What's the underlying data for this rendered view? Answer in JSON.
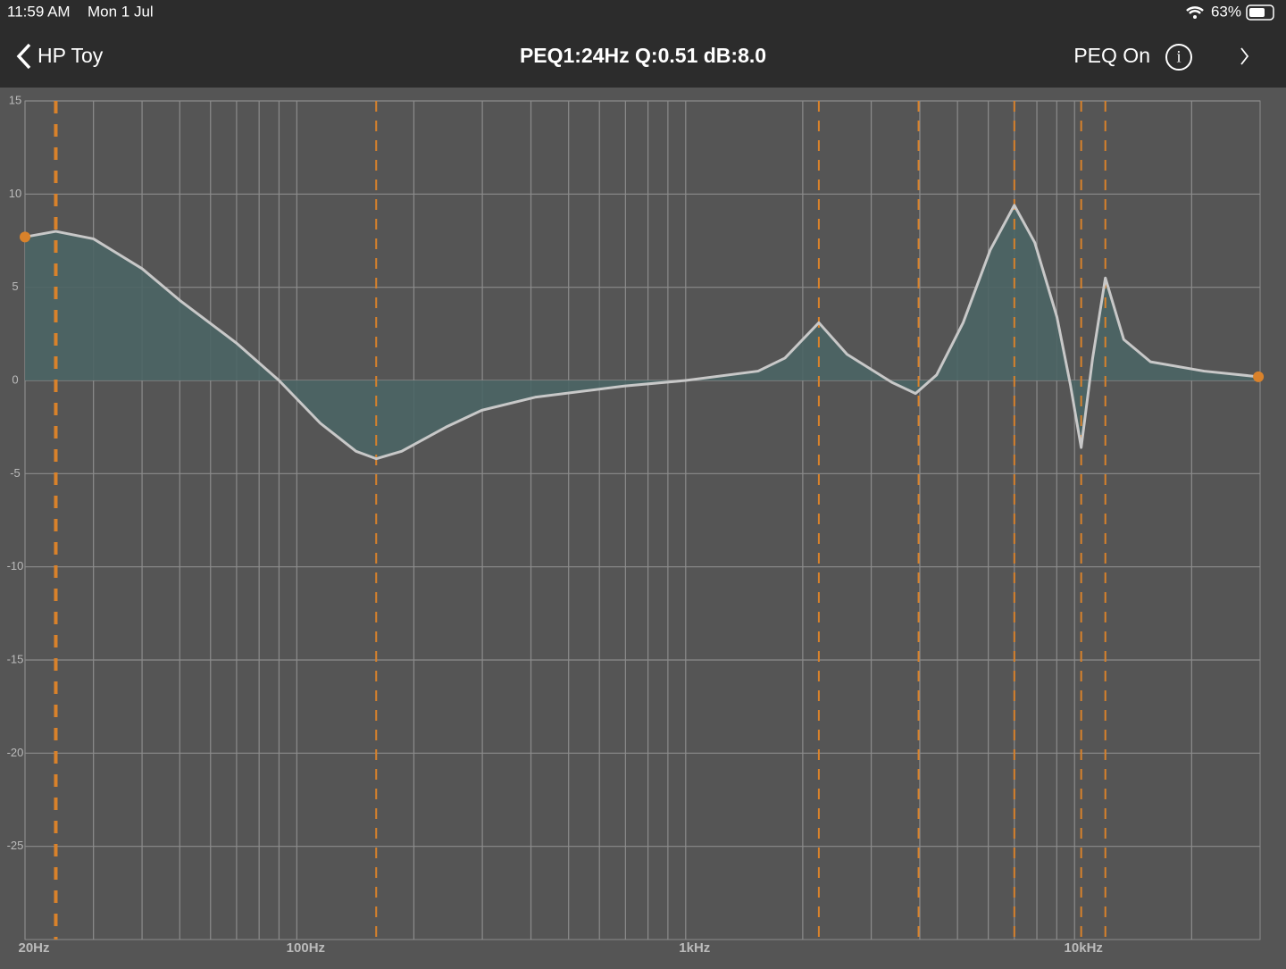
{
  "status_bar": {
    "time": "11:59 AM",
    "date": "Mon 1 Jul",
    "battery": "63%"
  },
  "nav": {
    "back": "HP Toy",
    "title": "PEQ1:24Hz Q:0.51 dB:8.0",
    "toggle": "PEQ On"
  },
  "chart_data": {
    "type": "line",
    "log_x": true,
    "grid": true,
    "x": [
      20,
      24,
      30,
      40,
      50,
      70,
      90,
      115,
      142,
      160,
      186,
      242,
      299,
      410,
      695,
      1000,
      1535,
      1800,
      2200,
      2600,
      3390,
      3900,
      4420,
      5170,
      6070,
      7000,
      7900,
      9010,
      9750,
      10400,
      11130,
      12000,
      13380,
      15680,
      21540,
      29700
    ],
    "values": [
      7.7,
      8.0,
      7.6,
      6.0,
      4.3,
      2.0,
      0,
      -2.3,
      -3.8,
      -4.2,
      -3.8,
      -2.5,
      -1.6,
      -0.9,
      -0.3,
      0,
      0.5,
      1.2,
      3.1,
      1.4,
      -0.1,
      -0.7,
      0.3,
      3.1,
      7.0,
      9.4,
      7.4,
      3.4,
      -0.2,
      -3.6,
      1.2,
      5.5,
      2.2,
      1.0,
      0.5,
      0.2
    ],
    "color": "#c8c8c8",
    "fill_color": "#4b6565",
    "filters": [
      24,
      160,
      2200,
      3970,
      7000,
      10400,
      12000
    ],
    "selected_filter": 0,
    "filter_color": "#d9822b",
    "xlim": [
      20,
      30000
    ],
    "ylim": [
      -30,
      15
    ],
    "xticks": [
      {
        "value": 20,
        "label": "20Hz"
      },
      {
        "value": 100,
        "label": "100Hz"
      },
      {
        "value": 1000,
        "label": "1kHz"
      },
      {
        "value": 10000,
        "label": "10kHz"
      }
    ],
    "xminor": [
      30,
      40,
      50,
      60,
      70,
      80,
      90,
      200,
      300,
      400,
      500,
      600,
      700,
      800,
      900,
      2000,
      3000,
      4000,
      5000,
      6000,
      7000,
      8000,
      9000,
      20000
    ],
    "yticks": [
      15,
      10,
      5,
      0,
      -5,
      -10,
      -15,
      -20,
      -25
    ]
  }
}
